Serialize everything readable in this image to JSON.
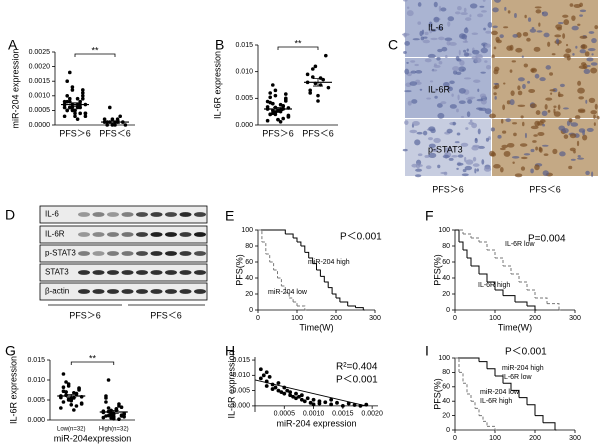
{
  "chart_data": [
    {
      "type": "dotplot",
      "panel": "A",
      "ylabel": "miR-204 expression",
      "categories": [
        "PFS＞6",
        "PFS＜6"
      ],
      "values": [
        [
          0.0007,
          0.0005,
          0.0009,
          0.0012,
          0.0004,
          0.0006,
          0.0008,
          0.001,
          0.0003,
          0.0007,
          0.0015,
          0.0018,
          0.0006,
          0.0005,
          0.0009,
          0.0004,
          0.0011,
          0.0007,
          0.0003,
          0.0008,
          0.0006,
          0.0013,
          0.0005,
          0.0002,
          0.0007,
          0.0009,
          0.0004,
          0.0006,
          0.001,
          0.0008,
          0.0005,
          0.0003,
          0.0007,
          0.0006,
          0.0012,
          0.0004,
          0.0008,
          0.0005,
          0.0006,
          0.0007
        ],
        [
          0.0001,
          0,
          0.0001,
          0.0002,
          0,
          0.0001,
          0.0003,
          0.0001,
          0,
          0.0002,
          0.0001,
          0.0006,
          0,
          0.0001,
          0.0002
        ]
      ],
      "means": [
        0.0007,
        0.0001
      ],
      "sem": [
        6e-05,
        4e-05
      ],
      "significance": "**",
      "color": "#000000",
      "ylim": [
        0,
        0.0025
      ],
      "yticks": [
        {
          "value": 0,
          "label": "0.0000"
        },
        {
          "value": 0.0005,
          "label": "0.0005"
        },
        {
          "value": 0.001,
          "label": "0.0010"
        },
        {
          "value": 0.0015,
          "label": "0.0015"
        },
        {
          "value": 0.002,
          "label": "0.0020"
        },
        {
          "value": 0.0025,
          "label": "0.0025"
        }
      ]
    },
    {
      "type": "dotplot",
      "panel": "B",
      "ylabel": "IL-6R  expression",
      "categories": [
        "PFS＞6",
        "PFS＜6"
      ],
      "values": [
        [
          0.003,
          0.002,
          0.004,
          0.0055,
          0.001,
          0.0025,
          0.0035,
          0.0045,
          0.0015,
          0.003,
          0.006,
          0.0075,
          0.002,
          0.0028,
          0.0038,
          0.0012,
          0.005,
          0.0032,
          0.0008,
          0.0042,
          0.0022,
          0.0065,
          0.0026,
          0.0006,
          0.003,
          0.0048,
          0.0018,
          0.0034,
          0.0052,
          0.004,
          0.0024,
          0.001,
          0.0029,
          0.0036,
          0.0058,
          0.0016,
          0.0044,
          0.002,
          0.0027,
          0.0033
        ],
        [
          0.008,
          0.0065,
          0.009,
          0.011,
          0.0055,
          0.0075,
          0.0085,
          0.013,
          0.007,
          0.0095,
          0.006,
          0.0105,
          0.0078,
          0.0045,
          0.0088
        ]
      ],
      "means": [
        0.003,
        0.008
      ],
      "sem": [
        0.0003,
        0.0007
      ],
      "significance": "**",
      "color": "#000000",
      "ylim": [
        0,
        0.015
      ],
      "yticks": [
        {
          "value": 0,
          "label": "0.000"
        },
        {
          "value": 0.005,
          "label": "0.005"
        },
        {
          "value": 0.01,
          "label": "0.010"
        },
        {
          "value": 0.015,
          "label": "0.015"
        }
      ]
    },
    {
      "type": "km",
      "panel": "E",
      "ylabel": "PFS(%)",
      "xlabel": "Time(W)",
      "annotations": [
        "P＜0.001"
      ],
      "xlim": [
        0,
        300
      ],
      "xticks": [
        0,
        100,
        200,
        300
      ],
      "ylim": [
        0,
        100
      ],
      "yticks": [
        0,
        20,
        40,
        60,
        80,
        100
      ],
      "series": [
        {
          "name": "miR-204 high",
          "color": "#000000",
          "dashed": false,
          "x": [
            0,
            50,
            70,
            90,
            100,
            110,
            120,
            130,
            140,
            150,
            160,
            170,
            180,
            190,
            200,
            210,
            230,
            250,
            270
          ],
          "values": [
            100,
            100,
            95,
            90,
            85,
            80,
            72,
            65,
            58,
            50,
            42,
            35,
            28,
            20,
            15,
            10,
            5,
            3,
            0
          ]
        },
        {
          "name": "miR-204 low",
          "color": "#777777",
          "dashed": true,
          "x": [
            0,
            10,
            20,
            30,
            40,
            50,
            60,
            70,
            80,
            90,
            100,
            120
          ],
          "values": [
            100,
            85,
            70,
            60,
            50,
            40,
            30,
            22,
            15,
            10,
            5,
            0
          ]
        }
      ]
    },
    {
      "type": "km",
      "panel": "F",
      "ylabel": "PFS(%)",
      "xlabel": "Time(W)",
      "annotations": [
        "P=0.004"
      ],
      "xlim": [
        0,
        300
      ],
      "xticks": [
        0,
        100,
        200,
        300
      ],
      "ylim": [
        0,
        100
      ],
      "yticks": [
        0,
        20,
        40,
        60,
        80,
        100
      ],
      "series": [
        {
          "name": "IL-6R low",
          "color": "#777777",
          "dashed": true,
          "x": [
            0,
            20,
            40,
            60,
            80,
            100,
            120,
            140,
            160,
            180,
            200,
            230,
            260
          ],
          "values": [
            100,
            95,
            90,
            85,
            75,
            65,
            55,
            45,
            35,
            25,
            15,
            8,
            0
          ]
        },
        {
          "name": "IL-6R high",
          "color": "#000000",
          "dashed": false,
          "x": [
            0,
            10,
            20,
            30,
            40,
            60,
            80,
            100,
            120,
            150,
            180,
            200
          ],
          "values": [
            100,
            85,
            75,
            65,
            55,
            45,
            35,
            25,
            18,
            10,
            5,
            0
          ]
        }
      ]
    },
    {
      "type": "dotplot",
      "panel": "G",
      "ylabel": "IL-6R expression",
      "xlabel": "miR-204expression",
      "categories": [
        "Low(n=32)",
        "High(n=32)"
      ],
      "values": [
        [
          0.006,
          0.0045,
          0.007,
          0.0085,
          0.005,
          0.0055,
          0.0065,
          0.0075,
          0.004,
          0.006,
          0.0115,
          0.0095,
          0.0052,
          0.0048,
          0.0068,
          0.0035,
          0.008,
          0.0058,
          0.003,
          0.0072,
          0.0062,
          0.009,
          0.0054,
          0.0025,
          0.0066,
          0.0078,
          0.0042,
          0.0056,
          0.0082,
          0.007,
          0.005,
          0.0038
        ],
        [
          0.002,
          0.001,
          0.003,
          0.0005,
          0.0015,
          0.0025,
          0.004,
          0.0012,
          0.0008,
          0.0022,
          0.006,
          0.01,
          0.0018,
          0.0003,
          0.0028,
          0.0035,
          0.001,
          0.0016,
          0.0006,
          0.0045,
          0.0021,
          0.0013,
          0.0009,
          0.0027,
          0.0002,
          0.0032,
          0.0014,
          0.0019,
          0.0055,
          0.0011,
          0.0024,
          0.0007
        ]
      ],
      "means": [
        0.006,
        0.002
      ],
      "sem": [
        0.0004,
        0.0004
      ],
      "significance": "**",
      "color": "#000000",
      "ylim": [
        0,
        0.015
      ],
      "yticks": [
        {
          "value": 0,
          "label": "0.000"
        },
        {
          "value": 0.005,
          "label": "0.005"
        },
        {
          "value": 0.01,
          "label": "0.010"
        },
        {
          "value": 0.015,
          "label": "0.015"
        }
      ]
    },
    {
      "type": "scatter",
      "panel": "H",
      "ylabel": "IL-6R expression",
      "xlabel": "miR-204 expression",
      "annotations": [
        "R²=0.404",
        "P＜0.001"
      ],
      "color": "#000000",
      "x": [
        0.0001,
        0.0001,
        0.00015,
        0.0002,
        0.0002,
        0.00025,
        0.0003,
        0.0003,
        0.00035,
        0.0004,
        0.0004,
        0.00045,
        0.0005,
        0.0005,
        0.00055,
        0.0006,
        0.0006,
        0.00065,
        0.0007,
        0.0007,
        0.00075,
        0.0008,
        0.0008,
        0.00085,
        0.0009,
        0.00095,
        0.001,
        0.001,
        0.0011,
        0.0011,
        0.0012,
        0.0013,
        0.0013,
        0.0014,
        0.0015,
        0.0016,
        0.0017,
        0.0018,
        0.0019,
        0.0002
      ],
      "values": [
        0.012,
        0.009,
        0.01,
        0.008,
        0.0065,
        0.0095,
        0.007,
        0.0055,
        0.006,
        0.0075,
        0.005,
        0.0045,
        0.006,
        0.004,
        0.005,
        0.0035,
        0.0045,
        0.003,
        0.004,
        0.0025,
        0.003,
        0.002,
        0.0035,
        0.0015,
        0.0025,
        0.001,
        0.002,
        0.0005,
        0.0015,
        0.0008,
        0.0012,
        0.0005,
        0.002,
        0.001,
        0,
        0.0008,
        0.0003,
        0,
        0.0004,
        0.011
      ],
      "fit": {
        "x": [
          0,
          0.0019
        ],
        "values": [
          0.0085,
          0
        ]
      },
      "xlim": [
        0,
        0.0021
      ],
      "xticks": [
        {
          "value": 0.0005,
          "label": "0.0005"
        },
        {
          "value": 0.001,
          "label": "0.0010"
        },
        {
          "value": 0.0015,
          "label": "0.0015"
        },
        {
          "value": 0.002,
          "label": "0.0020"
        }
      ],
      "ylim": [
        -0.002,
        0.016
      ],
      "yticks": [
        {
          "value": 0,
          "label": "0.000"
        },
        {
          "value": 0.005,
          "label": "0.005"
        },
        {
          "value": 0.01,
          "label": "0.010"
        },
        {
          "value": 0.015,
          "label": "0.015"
        }
      ]
    },
    {
      "type": "km",
      "panel": "I",
      "ylabel": "PFS(%)",
      "annotations": [
        "P＜0.001"
      ],
      "xlim": [
        0,
        300
      ],
      "xticks": [
        0,
        100,
        200,
        300
      ],
      "ylim": [
        0,
        100
      ],
      "yticks": [
        0,
        20,
        40,
        60,
        80,
        100
      ],
      "series": [
        {
          "name": [
            "miR-204 high",
            "IL-6R low"
          ],
          "color": "#000000",
          "dashed": false,
          "x": [
            0,
            60,
            80,
            100,
            120,
            140,
            160,
            180,
            200,
            220,
            250
          ],
          "values": [
            100,
            95,
            85,
            75,
            65,
            55,
            45,
            35,
            20,
            10,
            0
          ]
        },
        {
          "name": [
            "miR-204 low",
            "IL-6R high"
          ],
          "color": "#777777",
          "dashed": true,
          "x": [
            0,
            10,
            20,
            30,
            40,
            50,
            60,
            70,
            80,
            100
          ],
          "values": [
            100,
            80,
            65,
            50,
            40,
            30,
            20,
            12,
            5,
            0
          ]
        }
      ]
    }
  ],
  "ihc": {
    "panel": "C",
    "rows": [
      "IL-6",
      "IL-6R",
      "p-STAT3"
    ],
    "columns": [
      "PFS＞6",
      "PFS＜6"
    ]
  },
  "western": {
    "panel": "D",
    "rows": [
      "IL-6",
      "IL-6R",
      "p-STAT3",
      "STAT3",
      "β-actin"
    ],
    "groups": [
      "PFS＞6",
      "PFS＜6"
    ]
  }
}
